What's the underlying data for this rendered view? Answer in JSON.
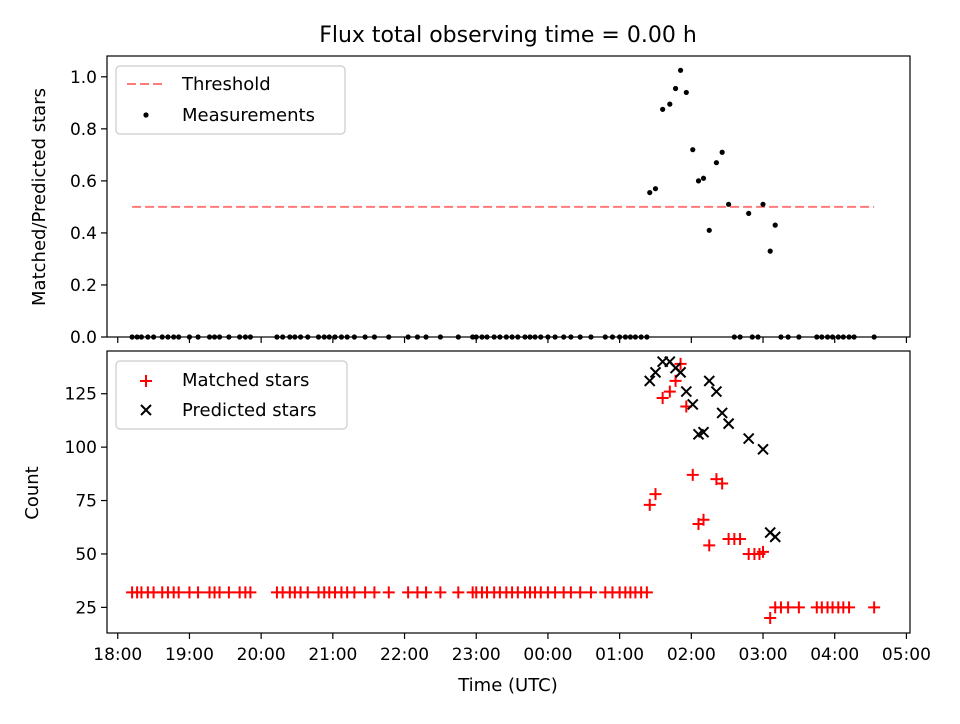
{
  "chart_data": [
    {
      "type": "scatter",
      "title": "Flux total observing time = 0.00 h",
      "xlabel": "",
      "ylabel": "Matched/Predicted stars",
      "ylim": [
        0,
        1.08
      ],
      "yticks": [
        0.0,
        0.2,
        0.4,
        0.6,
        0.8,
        1.0
      ],
      "ytick_labels": [
        "0.0",
        "0.2",
        "0.4",
        "0.6",
        "0.8",
        "1.0"
      ],
      "legend": {
        "location": "top-left",
        "entries": [
          "Threshold",
          "Measurements"
        ]
      },
      "threshold": {
        "name": "Threshold",
        "value": 0.5,
        "x_range": [
          18.2,
          28.55
        ],
        "color": "#ff7b7b"
      },
      "series": [
        {
          "name": "Measurements",
          "color": "#000000",
          "points": [
            [
              18.2,
              0
            ],
            [
              18.27,
              0
            ],
            [
              18.33,
              0
            ],
            [
              18.42,
              0
            ],
            [
              18.5,
              0
            ],
            [
              18.62,
              0
            ],
            [
              18.7,
              0
            ],
            [
              18.78,
              0
            ],
            [
              18.85,
              0
            ],
            [
              19.0,
              0
            ],
            [
              19.12,
              0
            ],
            [
              19.28,
              0
            ],
            [
              19.35,
              0
            ],
            [
              19.42,
              0
            ],
            [
              19.55,
              0
            ],
            [
              19.7,
              0
            ],
            [
              19.78,
              0
            ],
            [
              19.85,
              0
            ],
            [
              20.22,
              0
            ],
            [
              20.3,
              0
            ],
            [
              20.4,
              0
            ],
            [
              20.47,
              0
            ],
            [
              20.55,
              0
            ],
            [
              20.65,
              0
            ],
            [
              20.8,
              0
            ],
            [
              20.88,
              0
            ],
            [
              20.95,
              0
            ],
            [
              21.03,
              0
            ],
            [
              21.12,
              0
            ],
            [
              21.2,
              0
            ],
            [
              21.3,
              0
            ],
            [
              21.45,
              0
            ],
            [
              21.58,
              0
            ],
            [
              21.78,
              0
            ],
            [
              22.05,
              0
            ],
            [
              22.18,
              0
            ],
            [
              22.3,
              0
            ],
            [
              22.5,
              0
            ],
            [
              22.75,
              0
            ],
            [
              22.95,
              0
            ],
            [
              23.0,
              0
            ],
            [
              23.08,
              0
            ],
            [
              23.15,
              0
            ],
            [
              23.25,
              0
            ],
            [
              23.33,
              0
            ],
            [
              23.42,
              0
            ],
            [
              23.5,
              0
            ],
            [
              23.58,
              0
            ],
            [
              23.68,
              0
            ],
            [
              23.75,
              0
            ],
            [
              23.82,
              0
            ],
            [
              23.9,
              0
            ],
            [
              24.0,
              0
            ],
            [
              24.1,
              0
            ],
            [
              24.22,
              0
            ],
            [
              24.32,
              0
            ],
            [
              24.45,
              0
            ],
            [
              24.6,
              0
            ],
            [
              24.8,
              0
            ],
            [
              24.9,
              0
            ],
            [
              25.0,
              0
            ],
            [
              25.08,
              0
            ],
            [
              25.15,
              0
            ],
            [
              25.22,
              0
            ],
            [
              25.3,
              0
            ],
            [
              25.38,
              0
            ],
            [
              25.42,
              0.555
            ],
            [
              25.5,
              0.57
            ],
            [
              25.6,
              0.875
            ],
            [
              25.7,
              0.895
            ],
            [
              25.78,
              0.955
            ],
            [
              25.85,
              1.025
            ],
            [
              25.93,
              0.94
            ],
            [
              26.02,
              0.72
            ],
            [
              26.1,
              0.6
            ],
            [
              26.17,
              0.61
            ],
            [
              26.25,
              0.41
            ],
            [
              26.35,
              0.67
            ],
            [
              26.43,
              0.71
            ],
            [
              26.52,
              0.51
            ],
            [
              26.8,
              0.475
            ],
            [
              27.0,
              0.51
            ],
            [
              27.1,
              0.33
            ],
            [
              27.17,
              0.43
            ],
            [
              26.6,
              0
            ],
            [
              26.68,
              0
            ],
            [
              26.85,
              0
            ],
            [
              26.93,
              0
            ],
            [
              27.25,
              0
            ],
            [
              27.35,
              0
            ],
            [
              27.5,
              0
            ],
            [
              27.75,
              0
            ],
            [
              27.82,
              0
            ],
            [
              27.9,
              0
            ],
            [
              27.97,
              0
            ],
            [
              28.05,
              0
            ],
            [
              28.12,
              0
            ],
            [
              28.2,
              0
            ],
            [
              28.27,
              0
            ],
            [
              28.55,
              0
            ]
          ]
        }
      ]
    },
    {
      "type": "scatter",
      "title": "",
      "xlabel": "Time (UTC)",
      "ylabel": "Count",
      "ylim": [
        13,
        145
      ],
      "yticks": [
        25,
        50,
        75,
        100,
        125
      ],
      "ytick_labels": [
        "25",
        "50",
        "75",
        "100",
        "125"
      ],
      "xlim": [
        17.85,
        29.05
      ],
      "xticks": [
        18,
        19,
        20,
        21,
        22,
        23,
        24,
        25,
        26,
        27,
        28,
        29
      ],
      "xtick_labels": [
        "18:00",
        "19:00",
        "20:00",
        "21:00",
        "22:00",
        "23:00",
        "00:00",
        "01:00",
        "02:00",
        "03:00",
        "04:00",
        "05:00"
      ],
      "legend": {
        "location": "top-left",
        "entries": [
          "Matched stars",
          "Predicted stars"
        ]
      },
      "series": [
        {
          "name": "Matched stars",
          "marker": "plus",
          "color": "#ff0000",
          "points": [
            [
              18.2,
              32
            ],
            [
              18.27,
              32
            ],
            [
              18.33,
              32
            ],
            [
              18.42,
              32
            ],
            [
              18.5,
              32
            ],
            [
              18.62,
              32
            ],
            [
              18.7,
              32
            ],
            [
              18.78,
              32
            ],
            [
              18.85,
              32
            ],
            [
              19.0,
              32
            ],
            [
              19.12,
              32
            ],
            [
              19.28,
              32
            ],
            [
              19.35,
              32
            ],
            [
              19.42,
              32
            ],
            [
              19.55,
              32
            ],
            [
              19.7,
              32
            ],
            [
              19.78,
              32
            ],
            [
              19.85,
              32
            ],
            [
              20.22,
              32
            ],
            [
              20.3,
              32
            ],
            [
              20.4,
              32
            ],
            [
              20.47,
              32
            ],
            [
              20.55,
              32
            ],
            [
              20.65,
              32
            ],
            [
              20.8,
              32
            ],
            [
              20.88,
              32
            ],
            [
              20.95,
              32
            ],
            [
              21.03,
              32
            ],
            [
              21.12,
              32
            ],
            [
              21.2,
              32
            ],
            [
              21.3,
              32
            ],
            [
              21.45,
              32
            ],
            [
              21.58,
              32
            ],
            [
              21.78,
              32
            ],
            [
              22.05,
              32
            ],
            [
              22.18,
              32
            ],
            [
              22.3,
              32
            ],
            [
              22.5,
              32
            ],
            [
              22.75,
              32
            ],
            [
              22.95,
              32
            ],
            [
              23.0,
              32
            ],
            [
              23.08,
              32
            ],
            [
              23.15,
              32
            ],
            [
              23.25,
              32
            ],
            [
              23.33,
              32
            ],
            [
              23.42,
              32
            ],
            [
              23.5,
              32
            ],
            [
              23.58,
              32
            ],
            [
              23.68,
              32
            ],
            [
              23.75,
              32
            ],
            [
              23.82,
              32
            ],
            [
              23.9,
              32
            ],
            [
              24.0,
              32
            ],
            [
              24.1,
              32
            ],
            [
              24.22,
              32
            ],
            [
              24.32,
              32
            ],
            [
              24.45,
              32
            ],
            [
              24.6,
              32
            ],
            [
              24.8,
              32
            ],
            [
              24.9,
              32
            ],
            [
              25.0,
              32
            ],
            [
              25.08,
              32
            ],
            [
              25.15,
              32
            ],
            [
              25.22,
              32
            ],
            [
              25.3,
              32
            ],
            [
              25.38,
              32
            ],
            [
              25.42,
              73
            ],
            [
              25.5,
              78
            ],
            [
              25.6,
              123
            ],
            [
              25.7,
              126
            ],
            [
              25.78,
              131
            ],
            [
              25.85,
              139
            ],
            [
              25.93,
              119
            ],
            [
              26.02,
              87
            ],
            [
              26.1,
              64
            ],
            [
              26.17,
              66
            ],
            [
              26.25,
              54
            ],
            [
              26.35,
              85
            ],
            [
              26.43,
              83
            ],
            [
              26.52,
              57
            ],
            [
              26.6,
              57
            ],
            [
              26.68,
              57
            ],
            [
              26.8,
              50
            ],
            [
              26.88,
              50
            ],
            [
              26.95,
              50
            ],
            [
              27.0,
              51
            ],
            [
              27.1,
              20
            ],
            [
              27.17,
              25
            ],
            [
              27.25,
              25
            ],
            [
              27.35,
              25
            ],
            [
              27.5,
              25
            ],
            [
              27.75,
              25
            ],
            [
              27.82,
              25
            ],
            [
              27.9,
              25
            ],
            [
              27.97,
              25
            ],
            [
              28.05,
              25
            ],
            [
              28.12,
              25
            ],
            [
              28.2,
              25
            ],
            [
              28.55,
              25
            ]
          ]
        },
        {
          "name": "Predicted stars",
          "marker": "x",
          "color": "#000000",
          "points": [
            [
              25.42,
              131
            ],
            [
              25.5,
              135
            ],
            [
              25.6,
              140
            ],
            [
              25.7,
              140
            ],
            [
              25.78,
              137
            ],
            [
              25.85,
              135
            ],
            [
              25.93,
              126
            ],
            [
              26.02,
              120
            ],
            [
              26.1,
              106
            ],
            [
              26.17,
              107
            ],
            [
              26.25,
              131
            ],
            [
              26.35,
              126
            ],
            [
              26.43,
              116
            ],
            [
              26.52,
              111
            ],
            [
              26.8,
              104
            ],
            [
              27.0,
              99
            ],
            [
              27.1,
              60
            ],
            [
              27.17,
              58
            ]
          ]
        }
      ]
    }
  ]
}
